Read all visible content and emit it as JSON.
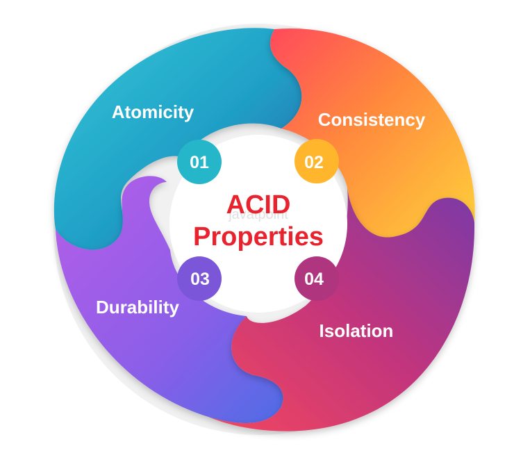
{
  "diagram": {
    "center": {
      "line1": "ACID",
      "line2": "Properties",
      "color": "#e8232e"
    },
    "watermark": "javatpoint",
    "segments": [
      {
        "name": "Atomicity",
        "number": "01",
        "colors": [
          "#2fb8d4",
          "#2c6fb0"
        ],
        "bubble": "#25b7c9"
      },
      {
        "name": "Consistency",
        "number": "02",
        "colors": [
          "#ff6057",
          "#ffcc3a"
        ],
        "bubble": "#ffb62c"
      },
      {
        "name": "Durability",
        "number": "03",
        "colors": [
          "#a54ee6",
          "#5a6ee8"
        ],
        "bubble": "#7b56d9"
      },
      {
        "name": "Isolation",
        "number": "04",
        "colors": [
          "#8b3fb9",
          "#f0446a"
        ],
        "bubble": "#b0357f"
      }
    ]
  }
}
